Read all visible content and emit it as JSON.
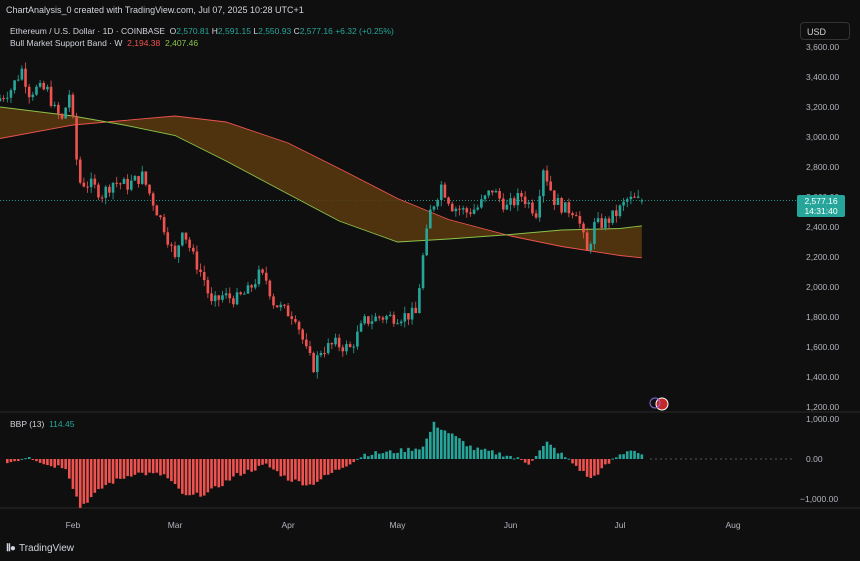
{
  "credit": "ChartAnalysis_0 created with TradingView.com, Jul 07, 2025 10:28 UTC+1",
  "header": {
    "symbol": "Ethereum / U.S. Dollar · 1D · COINBASE",
    "o_label": "O",
    "o_value": "2,570.81",
    "h_label": "H",
    "h_value": "2,591.15",
    "l_label": "L",
    "l_value": "2,550.93",
    "c_label": "C",
    "c_value": "2,577.16",
    "change": "+6.32 (+0.25%)"
  },
  "band_legend": {
    "name": "Bull Market Support Band · W",
    "sma": "2,194.38",
    "ema": "2,407.46"
  },
  "bbp_legend": {
    "name": "BBP (13)",
    "value": "114.45"
  },
  "currency_button": "USD",
  "price_tag": {
    "price": "2,577.16",
    "countdown": "14:31:40"
  },
  "footer_logo": "TradingView",
  "colors": {
    "up": "#26a69a",
    "down": "#ef5350",
    "band_fill": "#5a3a0e",
    "sma_line": "#ef5350",
    "ema_line": "#8bc34a"
  },
  "chart_data": [
    {
      "type": "candlestick",
      "title": "Ethereum / U.S. Dollar · 1D · COINBASE",
      "y_ticks": [
        "3,600.00",
        "3,400.00",
        "3,200.00",
        "3,000.00",
        "2,800.00",
        "2,600.00",
        "2,400.00",
        "2,200.00",
        "2,000.00",
        "1,800.00",
        "1,600.00",
        "1,400.00",
        "1,200.00"
      ],
      "ylim": [
        1180,
        3660
      ],
      "x_ticks": [
        "Feb",
        "Mar",
        "Apr",
        "May",
        "Jun",
        "Jul",
        "Aug"
      ],
      "x_tick_dates": [
        "2025-02-01",
        "2025-03-01",
        "2025-04-01",
        "2025-05-01",
        "2025-06-01",
        "2025-07-01",
        "2025-08-01"
      ],
      "x_range": [
        "2025-01-12",
        "2025-08-18"
      ],
      "last_price": 2577.16,
      "closes": [
        {
          "date": "2025-01-12",
          "close": 3260
        },
        {
          "date": "2025-01-15",
          "close": 3320
        },
        {
          "date": "2025-01-18",
          "close": 3450
        },
        {
          "date": "2025-01-20",
          "close": 3300
        },
        {
          "date": "2025-01-22",
          "close": 3320
        },
        {
          "date": "2025-01-25",
          "close": 3310
        },
        {
          "date": "2025-01-27",
          "close": 3180
        },
        {
          "date": "2025-01-29",
          "close": 3110
        },
        {
          "date": "2025-01-31",
          "close": 3290
        },
        {
          "date": "2025-02-01",
          "close": 3100
        },
        {
          "date": "2025-02-02",
          "close": 2850
        },
        {
          "date": "2025-02-03",
          "close": 2700
        },
        {
          "date": "2025-02-06",
          "close": 2680
        },
        {
          "date": "2025-02-09",
          "close": 2620
        },
        {
          "date": "2025-02-12",
          "close": 2700
        },
        {
          "date": "2025-02-16",
          "close": 2680
        },
        {
          "date": "2025-02-20",
          "close": 2740
        },
        {
          "date": "2025-02-24",
          "close": 2510
        },
        {
          "date": "2025-02-26",
          "close": 2400
        },
        {
          "date": "2025-03-01",
          "close": 2180
        },
        {
          "date": "2025-03-03",
          "close": 2400
        },
        {
          "date": "2025-03-06",
          "close": 2200
        },
        {
          "date": "2025-03-09",
          "close": 2050
        },
        {
          "date": "2025-03-11",
          "close": 1880
        },
        {
          "date": "2025-03-14",
          "close": 1940
        },
        {
          "date": "2025-03-18",
          "close": 1920
        },
        {
          "date": "2025-03-21",
          "close": 1970
        },
        {
          "date": "2025-03-24",
          "close": 2080
        },
        {
          "date": "2025-03-26",
          "close": 2050
        },
        {
          "date": "2025-03-28",
          "close": 1900
        },
        {
          "date": "2025-03-31",
          "close": 1840
        },
        {
          "date": "2025-04-03",
          "close": 1810
        },
        {
          "date": "2025-04-06",
          "close": 1570
        },
        {
          "date": "2025-04-08",
          "close": 1470
        },
        {
          "date": "2025-04-10",
          "close": 1580
        },
        {
          "date": "2025-04-14",
          "close": 1620
        },
        {
          "date": "2025-04-18",
          "close": 1590
        },
        {
          "date": "2025-04-22",
          "close": 1770
        },
        {
          "date": "2025-04-26",
          "close": 1800
        },
        {
          "date": "2025-04-30",
          "close": 1800
        },
        {
          "date": "2025-05-06",
          "close": 1820
        },
        {
          "date": "2025-05-08",
          "close": 2200
        },
        {
          "date": "2025-05-10",
          "close": 2500
        },
        {
          "date": "2025-05-13",
          "close": 2680
        },
        {
          "date": "2025-05-16",
          "close": 2540
        },
        {
          "date": "2025-05-20",
          "close": 2500
        },
        {
          "date": "2025-05-23",
          "close": 2530
        },
        {
          "date": "2025-05-27",
          "close": 2650
        },
        {
          "date": "2025-05-31",
          "close": 2530
        },
        {
          "date": "2025-06-04",
          "close": 2610
        },
        {
          "date": "2025-06-08",
          "close": 2500
        },
        {
          "date": "2025-06-10",
          "close": 2800
        },
        {
          "date": "2025-06-13",
          "close": 2580
        },
        {
          "date": "2025-06-16",
          "close": 2520
        },
        {
          "date": "2025-06-19",
          "close": 2510
        },
        {
          "date": "2025-06-22",
          "close": 2230
        },
        {
          "date": "2025-06-24",
          "close": 2410
        },
        {
          "date": "2025-06-27",
          "close": 2430
        },
        {
          "date": "2025-06-30",
          "close": 2490
        },
        {
          "date": "2025-07-03",
          "close": 2580
        },
        {
          "date": "2025-07-07",
          "close": 2577
        }
      ]
    },
    {
      "type": "area",
      "title": "Bull Market Support Band · W",
      "series": [
        {
          "name": "2,194.38",
          "points": [
            {
              "date": "2025-01-12",
              "y": 2990
            },
            {
              "date": "2025-02-01",
              "y": 3080
            },
            {
              "date": "2025-02-15",
              "y": 3110
            },
            {
              "date": "2025-03-01",
              "y": 3140
            },
            {
              "date": "2025-03-15",
              "y": 3100
            },
            {
              "date": "2025-04-01",
              "y": 2960
            },
            {
              "date": "2025-04-15",
              "y": 2790
            },
            {
              "date": "2025-05-01",
              "y": 2590
            },
            {
              "date": "2025-05-15",
              "y": 2450
            },
            {
              "date": "2025-06-01",
              "y": 2340
            },
            {
              "date": "2025-06-15",
              "y": 2270
            },
            {
              "date": "2025-07-01",
              "y": 2210
            },
            {
              "date": "2025-07-07",
              "y": 2194.38
            }
          ]
        },
        {
          "name": "2,407.46",
          "points": [
            {
              "date": "2025-01-12",
              "y": 3200
            },
            {
              "date": "2025-02-01",
              "y": 3140
            },
            {
              "date": "2025-02-15",
              "y": 3080
            },
            {
              "date": "2025-03-01",
              "y": 3010
            },
            {
              "date": "2025-03-15",
              "y": 2840
            },
            {
              "date": "2025-04-01",
              "y": 2620
            },
            {
              "date": "2025-04-15",
              "y": 2440
            },
            {
              "date": "2025-05-01",
              "y": 2300
            },
            {
              "date": "2025-05-15",
              "y": 2320
            },
            {
              "date": "2025-06-01",
              "y": 2350
            },
            {
              "date": "2025-06-15",
              "y": 2380
            },
            {
              "date": "2025-07-01",
              "y": 2390
            },
            {
              "date": "2025-07-07",
              "y": 2407.46
            }
          ]
        }
      ]
    },
    {
      "type": "bar",
      "title": "BBP (13)",
      "y_ticks": [
        "1,000.00",
        "0.00",
        "−1,000.00"
      ],
      "ylim": [
        -1300,
        1150
      ],
      "last_value": 114.45,
      "bars": [
        {
          "date": "2025-01-14",
          "value": -100
        },
        {
          "date": "2025-01-20",
          "value": 80
        },
        {
          "date": "2025-01-25",
          "value": -150
        },
        {
          "date": "2025-01-30",
          "value": -200
        },
        {
          "date": "2025-02-03",
          "value": -1200
        },
        {
          "date": "2025-02-10",
          "value": -650
        },
        {
          "date": "2025-02-18",
          "value": -350
        },
        {
          "date": "2025-02-26",
          "value": -400
        },
        {
          "date": "2025-03-04",
          "value": -950
        },
        {
          "date": "2025-03-10",
          "value": -850
        },
        {
          "date": "2025-03-18",
          "value": -400
        },
        {
          "date": "2025-03-26",
          "value": -150
        },
        {
          "date": "2025-04-01",
          "value": -500
        },
        {
          "date": "2025-04-07",
          "value": -650
        },
        {
          "date": "2025-04-14",
          "value": -300
        },
        {
          "date": "2025-04-22",
          "value": 120
        },
        {
          "date": "2025-04-30",
          "value": 180
        },
        {
          "date": "2025-05-08",
          "value": 300
        },
        {
          "date": "2025-05-11",
          "value": 880
        },
        {
          "date": "2025-05-16",
          "value": 600
        },
        {
          "date": "2025-05-22",
          "value": 250
        },
        {
          "date": "2025-05-31",
          "value": 100
        },
        {
          "date": "2025-06-06",
          "value": -100
        },
        {
          "date": "2025-06-11",
          "value": 400
        },
        {
          "date": "2025-06-18",
          "value": -100
        },
        {
          "date": "2025-06-23",
          "value": -500
        },
        {
          "date": "2025-06-30",
          "value": 50
        },
        {
          "date": "2025-07-04",
          "value": 250
        },
        {
          "date": "2025-07-07",
          "value": 114.45
        }
      ]
    }
  ]
}
